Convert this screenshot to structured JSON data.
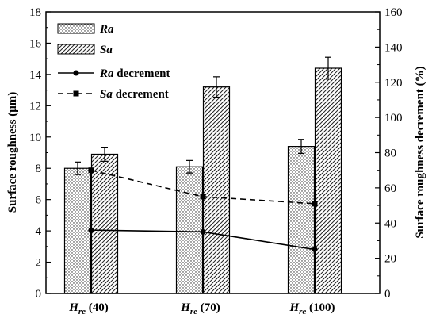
{
  "chart_data": {
    "type": "bar",
    "categories": [
      {
        "main": "H",
        "sub": "re",
        "rest": " (40)"
      },
      {
        "main": "H",
        "sub": "re",
        "rest": " (70)"
      },
      {
        "main": "H",
        "sub": "re",
        "rest": " (100)"
      }
    ],
    "bar_series": [
      {
        "name": "Ra",
        "pattern": "dots",
        "values": [
          8.0,
          8.1,
          9.4
        ],
        "errors": [
          0.4,
          0.4,
          0.45
        ]
      },
      {
        "name": "Sa",
        "pattern": "hatch",
        "values": [
          8.9,
          13.2,
          14.4
        ],
        "errors": [
          0.45,
          0.65,
          0.7
        ]
      }
    ],
    "line_series": [
      {
        "name_italic": "Ra",
        "name_rest": " decrement",
        "style": "solid",
        "marker": "circle",
        "values": [
          36,
          35,
          25
        ]
      },
      {
        "name_italic": "Sa",
        "name_rest": " decrement",
        "style": "dashed",
        "marker": "square",
        "values": [
          70,
          55,
          51
        ]
      }
    ],
    "y_left": {
      "label": "Surface roughness (μm)",
      "min": 0,
      "max": 18,
      "ticks": [
        0,
        2,
        4,
        6,
        8,
        10,
        12,
        14,
        16,
        18
      ]
    },
    "y_right": {
      "label": "Surface roughness decrement (%)",
      "min": 0,
      "max": 160,
      "ticks": [
        0,
        20,
        40,
        60,
        80,
        100,
        120,
        140,
        160
      ]
    },
    "legend_position": "top-left",
    "grid": false
  }
}
